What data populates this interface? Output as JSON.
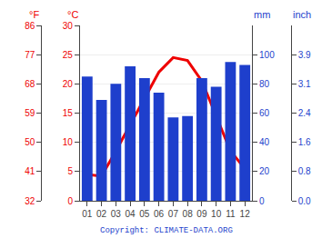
{
  "chart_data": {
    "type": "bar",
    "categories": [
      "01",
      "02",
      "03",
      "04",
      "05",
      "06",
      "07",
      "08",
      "09",
      "10",
      "11",
      "12"
    ],
    "series": [
      {
        "type": "bar",
        "color": "#1e3fcc",
        "axis": "y2",
        "values": [
          85,
          69,
          80,
          92,
          84,
          74,
          57,
          58,
          84,
          78,
          95,
          93
        ]
      },
      {
        "type": "line",
        "color": "#ee0000",
        "values": [
          4.5,
          4.2,
          8.5,
          13.0,
          17.5,
          22.0,
          24.5,
          24.0,
          20.5,
          14.5,
          8.5,
          5.5
        ]
      }
    ],
    "ylabel": "°C",
    "ylim": [
      0,
      30
    ],
    "yticks": [
      0,
      5,
      10,
      15,
      20,
      25,
      30
    ],
    "y2label": "mm",
    "y2lim": [
      0,
      120
    ],
    "y2ticks": [
      0,
      20,
      40,
      60,
      80,
      100
    ],
    "y3label": "°F",
    "y3lim": [
      0,
      30
    ],
    "y3ticks": [
      {
        "value": 0,
        "label": "32"
      },
      {
        "value": 5,
        "label": "41"
      },
      {
        "value": 10,
        "label": "50"
      },
      {
        "value": 15,
        "label": "59"
      },
      {
        "value": 20,
        "label": "68"
      },
      {
        "value": 25,
        "label": "77"
      },
      {
        "value": 30,
        "label": "86"
      }
    ],
    "y4label": "inch",
    "y4lim": [
      0,
      120
    ],
    "y4ticks": [
      {
        "value": 0,
        "label": "0.0"
      },
      {
        "value": 20,
        "label": "0.8"
      },
      {
        "value": 40,
        "label": "1.6"
      },
      {
        "value": 60,
        "label": "2.4"
      },
      {
        "value": 80,
        "label": "3.1"
      },
      {
        "value": 100,
        "label": "3.9"
      }
    ],
    "annotations": [
      {
        "text": "Copyright: CLIMATE-DATA.ORG"
      }
    ],
    "grid": true
  }
}
